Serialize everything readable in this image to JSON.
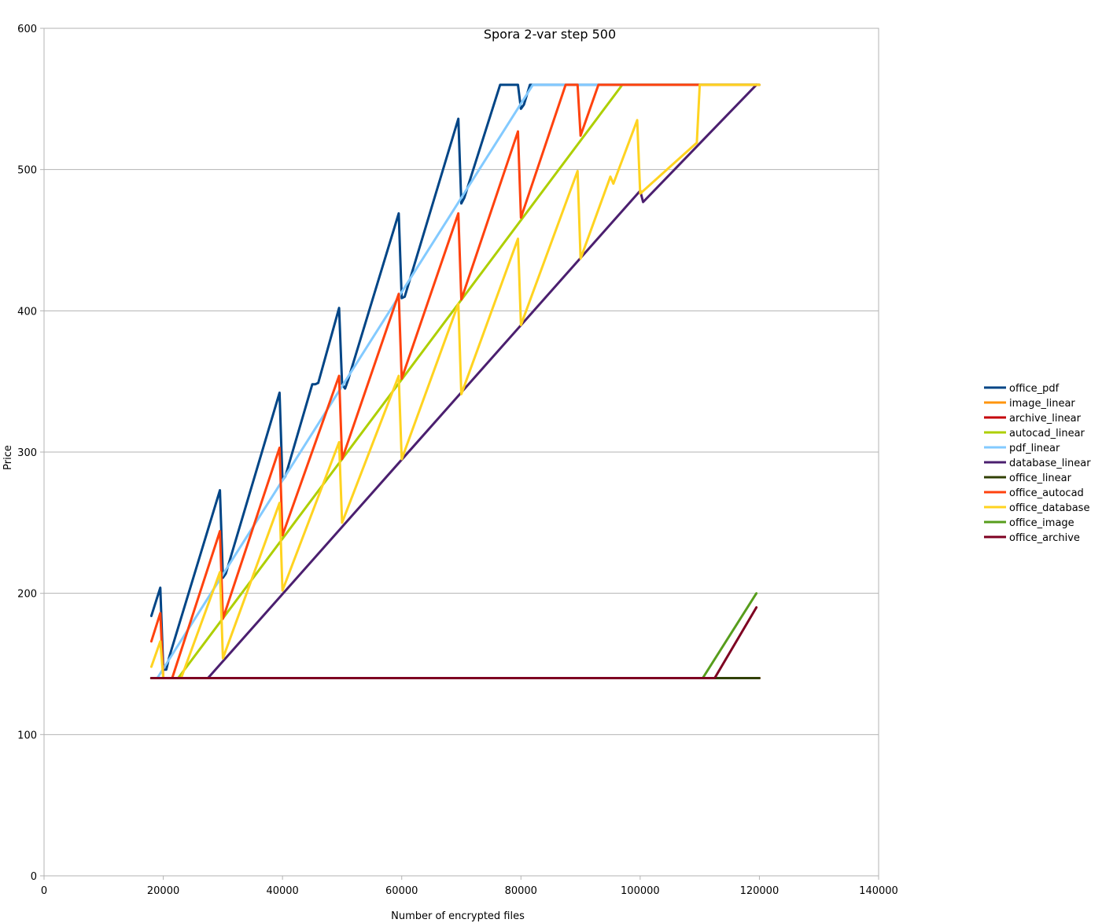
{
  "chart_data": {
    "type": "line",
    "title": "Spora 2-var step 500",
    "xlabel": "Number of encrypted files",
    "ylabel": "Price",
    "xlim": [
      0,
      140000
    ],
    "ylim": [
      0,
      600
    ],
    "xticks": [
      "0",
      "20000",
      "40000",
      "60000",
      "80000",
      "100000",
      "120000",
      "140000"
    ],
    "yticks": [
      "0",
      "100",
      "200",
      "300",
      "400",
      "500",
      "600"
    ],
    "grid": "horizontal",
    "legend_position": "right",
    "series": [
      {
        "name": "office_pdf",
        "color": "#004586",
        "x": [
          18000,
          19500,
          20000,
          20500,
          21000,
          29500,
          30000,
          30500,
          39500,
          40000,
          40500,
          45000,
          45500,
          46000,
          49500,
          50000,
          50500,
          51000,
          59500,
          60000,
          60500,
          69500,
          70000,
          70500,
          76500,
          79500,
          80000,
          80500,
          81500,
          120000
        ],
        "y": [
          184,
          204,
          146,
          146,
          155,
          273,
          211,
          214,
          342,
          280,
          283,
          348,
          348,
          349,
          402,
          348,
          345,
          351,
          469,
          409,
          410,
          536,
          476,
          480,
          560,
          560,
          543,
          546,
          560,
          560
        ]
      },
      {
        "name": "image_linear",
        "color": "#ff950e",
        "x": [
          18000,
          120000
        ],
        "y": [
          140,
          140
        ]
      },
      {
        "name": "archive_linear",
        "color": "#c5000b",
        "x": [
          18000,
          120000
        ],
        "y": [
          140,
          140
        ]
      },
      {
        "name": "autocad_linear",
        "color": "#aecf00",
        "x": [
          18000,
          22500,
          97000,
          120000
        ],
        "y": [
          140,
          140,
          560,
          560
        ]
      },
      {
        "name": "pdf_linear",
        "color": "#83caff",
        "x": [
          18000,
          19000,
          82000,
          120000
        ],
        "y": [
          140,
          140,
          560,
          560
        ]
      },
      {
        "name": "database_linear",
        "color": "#4b1f6f",
        "x": [
          18000,
          27500,
          100000,
          100500,
          119500
        ],
        "y": [
          140,
          140,
          485,
          477,
          560
        ]
      },
      {
        "name": "office_linear",
        "color": "#314004",
        "x": [
          18000,
          120000
        ],
        "y": [
          140,
          140
        ]
      },
      {
        "name": "office_autocad",
        "color": "#ff420e",
        "x": [
          18000,
          19500,
          20000,
          21500,
          29500,
          30000,
          39500,
          40000,
          49500,
          50000,
          59500,
          60000,
          69500,
          70000,
          79500,
          80000,
          87500,
          89500,
          90000,
          93000,
          120000
        ],
        "y": [
          166,
          186,
          140,
          140,
          244,
          182,
          303,
          241,
          354,
          295,
          412,
          352,
          469,
          408,
          527,
          466,
          560,
          560,
          524,
          560,
          560
        ]
      },
      {
        "name": "office_database",
        "color": "#ffd320",
        "x": [
          18000,
          19500,
          20000,
          23000,
          29500,
          30000,
          39500,
          40000,
          49500,
          50000,
          59500,
          60000,
          69500,
          70000,
          79500,
          80000,
          89500,
          90000,
          95000,
          95500,
          99500,
          100000,
          109500,
          110000,
          120000
        ],
        "y": [
          148,
          166,
          140,
          140,
          215,
          154,
          264,
          202,
          307,
          250,
          354,
          295,
          405,
          341,
          451,
          390,
          499,
          437,
          495,
          490,
          535,
          483,
          519,
          560,
          560
        ]
      },
      {
        "name": "office_image",
        "color": "#579d1c",
        "x": [
          18000,
          110500,
          119500
        ],
        "y": [
          140,
          140,
          200
        ]
      },
      {
        "name": "office_archive",
        "color": "#7e0021",
        "x": [
          18000,
          112500,
          119500
        ],
        "y": [
          140,
          140,
          190
        ]
      }
    ]
  }
}
